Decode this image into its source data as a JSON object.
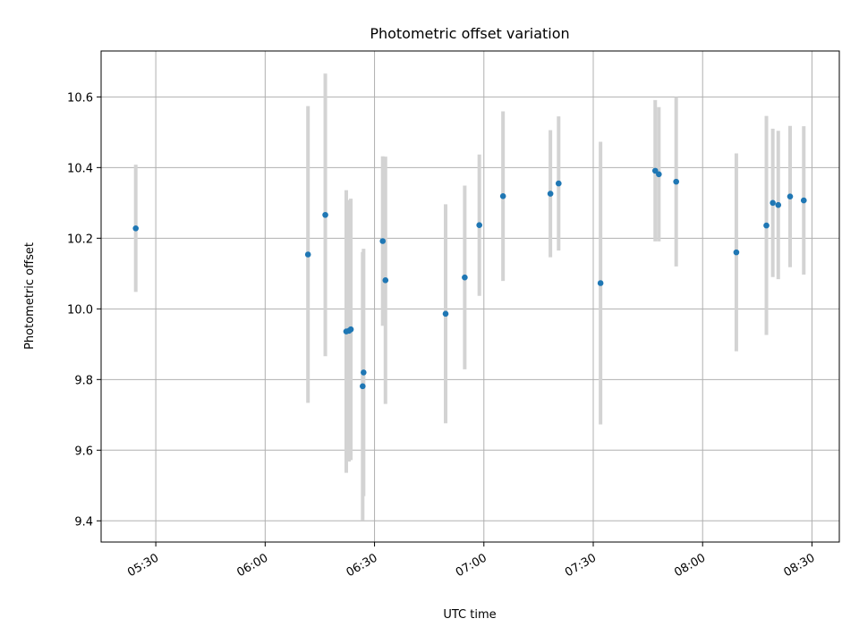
{
  "chart_data": {
    "type": "scatter",
    "title": "Photometric offset variation",
    "xlabel": "UTC time",
    "ylabel": "Photometric offset",
    "x_ticks": [
      "05:30",
      "06:00",
      "06:30",
      "07:00",
      "07:30",
      "08:00",
      "08:30"
    ],
    "y_ticks": [
      "9.4",
      "9.6",
      "9.8",
      "10.0",
      "10.2",
      "10.4",
      "10.6"
    ],
    "xlim": [
      "05:15:00",
      "08:37:30"
    ],
    "ylim": [
      9.34,
      10.73
    ],
    "grid": true,
    "series": [
      {
        "points": [
          {
            "x": "05:24:30",
            "y": 10.228,
            "err": 0.18
          },
          {
            "x": "06:11:45",
            "y": 10.154,
            "err": 0.42
          },
          {
            "x": "06:16:30",
            "y": 10.266,
            "err": 0.4
          },
          {
            "x": "06:22:15",
            "y": 9.936,
            "err": 0.4
          },
          {
            "x": "06:23:00",
            "y": 9.938,
            "err": 0.37
          },
          {
            "x": "06:23:30",
            "y": 9.942,
            "err": 0.37
          },
          {
            "x": "06:26:45",
            "y": 9.781,
            "err": 0.38
          },
          {
            "x": "06:27:00",
            "y": 9.82,
            "err": 0.35
          },
          {
            "x": "06:32:15",
            "y": 10.192,
            "err": 0.24
          },
          {
            "x": "06:33:00",
            "y": 10.081,
            "err": 0.35
          },
          {
            "x": "06:49:30",
            "y": 9.986,
            "err": 0.31
          },
          {
            "x": "06:54:45",
            "y": 10.089,
            "err": 0.26
          },
          {
            "x": "06:58:45",
            "y": 10.237,
            "err": 0.2
          },
          {
            "x": "07:05:15",
            "y": 10.319,
            "err": 0.24
          },
          {
            "x": "07:18:15",
            "y": 10.326,
            "err": 0.18
          },
          {
            "x": "07:20:30",
            "y": 10.355,
            "err": 0.19
          },
          {
            "x": "07:32:00",
            "y": 10.073,
            "err": 0.4
          },
          {
            "x": "07:47:00",
            "y": 10.391,
            "err": 0.2
          },
          {
            "x": "07:48:00",
            "y": 10.381,
            "err": 0.19
          },
          {
            "x": "07:52:45",
            "y": 10.36,
            "err": 0.24
          },
          {
            "x": "08:09:15",
            "y": 10.16,
            "err": 0.28
          },
          {
            "x": "08:17:30",
            "y": 10.236,
            "err": 0.31
          },
          {
            "x": "08:19:15",
            "y": 10.3,
            "err": 0.21
          },
          {
            "x": "08:20:45",
            "y": 10.294,
            "err": 0.21
          },
          {
            "x": "08:24:00",
            "y": 10.318,
            "err": 0.2
          },
          {
            "x": "08:27:45",
            "y": 10.307,
            "err": 0.21
          }
        ]
      }
    ],
    "colors": {
      "points": "#1f77b4",
      "errorbars": "#d3d3d3",
      "grid": "#b0b0b0"
    }
  }
}
